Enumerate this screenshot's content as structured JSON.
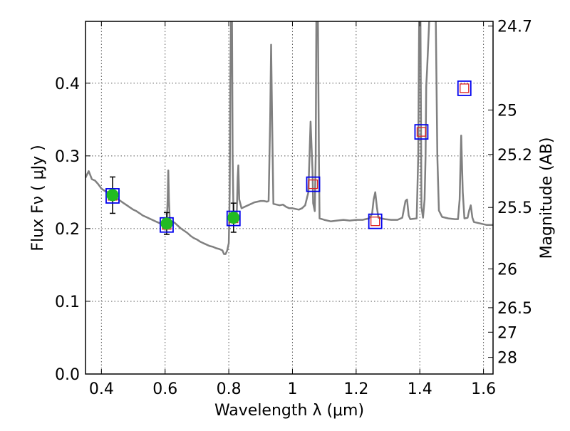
{
  "chart_data": {
    "type": "scatter",
    "xlabel": "Wavelength  λ (μm)",
    "ylabel": "Flux  Fν  ( μJy )",
    "y2label": "Magnitude (AB)",
    "xlim": [
      0.35,
      1.63
    ],
    "ylim": [
      0.0,
      0.485
    ],
    "grid": true,
    "x_ticks": [
      0.4,
      0.6,
      0.8,
      1.0,
      1.2,
      1.4,
      1.6
    ],
    "x_tick_labels": [
      "0.4",
      "0.6",
      "0.8",
      "1",
      "1.2",
      "1.4",
      "1.6"
    ],
    "y_ticks": [
      0.0,
      0.1,
      0.2,
      0.3,
      0.4
    ],
    "y_tick_labels": [
      "0.0",
      "0.1",
      "0.2",
      "0.3",
      "0.4"
    ],
    "y2_ticks": [
      {
        "label": "24.7",
        "flux": 0.4786
      },
      {
        "label": "25",
        "flux": 0.3631
      },
      {
        "label": "25.2",
        "flux": 0.302
      },
      {
        "label": "25.5",
        "flux": 0.2291
      },
      {
        "label": "26",
        "flux": 0.1445
      },
      {
        "label": "26.5",
        "flux": 0.0912
      },
      {
        "label": "27",
        "flux": 0.0575
      },
      {
        "label": "28",
        "flux": 0.0229
      }
    ],
    "colors": {
      "sed": "#808080",
      "observed": "#22bb22",
      "model_outer": "#0000ee",
      "model_inner": "#dd2222",
      "errorbar": "#000000"
    },
    "series": [
      {
        "kind": "line",
        "points": [
          [
            0.35,
            0.27
          ],
          [
            0.36,
            0.279
          ],
          [
            0.37,
            0.268
          ],
          [
            0.38,
            0.266
          ],
          [
            0.39,
            0.261
          ],
          [
            0.4,
            0.255
          ],
          [
            0.41,
            0.252
          ],
          [
            0.42,
            0.25
          ],
          [
            0.43,
            0.247
          ],
          [
            0.44,
            0.244
          ],
          [
            0.45,
            0.241
          ],
          [
            0.46,
            0.238
          ],
          [
            0.47,
            0.235
          ],
          [
            0.48,
            0.232
          ],
          [
            0.49,
            0.229
          ],
          [
            0.5,
            0.226
          ],
          [
            0.51,
            0.224
          ],
          [
            0.52,
            0.221
          ],
          [
            0.53,
            0.218
          ],
          [
            0.54,
            0.216
          ],
          [
            0.55,
            0.214
          ],
          [
            0.56,
            0.212
          ],
          [
            0.57,
            0.21
          ],
          [
            0.58,
            0.208
          ],
          [
            0.59,
            0.206
          ],
          [
            0.6,
            0.204
          ],
          [
            0.605,
            0.206
          ],
          [
            0.608,
            0.24
          ],
          [
            0.61,
            0.28
          ],
          [
            0.612,
            0.24
          ],
          [
            0.615,
            0.209
          ],
          [
            0.62,
            0.21
          ],
          [
            0.63,
            0.208
          ],
          [
            0.64,
            0.204
          ],
          [
            0.65,
            0.2
          ],
          [
            0.66,
            0.197
          ],
          [
            0.67,
            0.194
          ],
          [
            0.68,
            0.19
          ],
          [
            0.69,
            0.187
          ],
          [
            0.7,
            0.185
          ],
          [
            0.71,
            0.182
          ],
          [
            0.72,
            0.18
          ],
          [
            0.73,
            0.178
          ],
          [
            0.74,
            0.176
          ],
          [
            0.75,
            0.175
          ],
          [
            0.76,
            0.173
          ],
          [
            0.77,
            0.172
          ],
          [
            0.78,
            0.17
          ],
          [
            0.785,
            0.165
          ],
          [
            0.79,
            0.165
          ],
          [
            0.795,
            0.17
          ],
          [
            0.8,
            0.18
          ],
          [
            0.803,
            0.25
          ],
          [
            0.805,
            0.4
          ],
          [
            0.807,
            0.49
          ],
          [
            0.81,
            0.49
          ],
          [
            0.812,
            0.3
          ],
          [
            0.815,
            0.215
          ],
          [
            0.82,
            0.215
          ],
          [
            0.825,
            0.22
          ],
          [
            0.828,
            0.27
          ],
          [
            0.83,
            0.287
          ],
          [
            0.833,
            0.24
          ],
          [
            0.84,
            0.228
          ],
          [
            0.85,
            0.23
          ],
          [
            0.86,
            0.232
          ],
          [
            0.87,
            0.234
          ],
          [
            0.88,
            0.236
          ],
          [
            0.89,
            0.237
          ],
          [
            0.9,
            0.238
          ],
          [
            0.91,
            0.238
          ],
          [
            0.92,
            0.237
          ],
          [
            0.925,
            0.238
          ],
          [
            0.93,
            0.35
          ],
          [
            0.933,
            0.453
          ],
          [
            0.936,
            0.35
          ],
          [
            0.94,
            0.234
          ],
          [
            0.95,
            0.233
          ],
          [
            0.96,
            0.232
          ],
          [
            0.97,
            0.233
          ],
          [
            0.98,
            0.23
          ],
          [
            0.99,
            0.228
          ],
          [
            1.0,
            0.228
          ],
          [
            1.01,
            0.227
          ],
          [
            1.02,
            0.226
          ],
          [
            1.03,
            0.228
          ],
          [
            1.04,
            0.232
          ],
          [
            1.05,
            0.25
          ],
          [
            1.057,
            0.347
          ],
          [
            1.063,
            0.28
          ],
          [
            1.065,
            0.235
          ],
          [
            1.07,
            0.224
          ],
          [
            1.073,
            0.3
          ],
          [
            1.075,
            0.49
          ],
          [
            1.08,
            0.49
          ],
          [
            1.083,
            0.3
          ],
          [
            1.085,
            0.214
          ],
          [
            1.1,
            0.212
          ],
          [
            1.12,
            0.21
          ],
          [
            1.14,
            0.211
          ],
          [
            1.16,
            0.212
          ],
          [
            1.18,
            0.211
          ],
          [
            1.2,
            0.212
          ],
          [
            1.22,
            0.212
          ],
          [
            1.24,
            0.214
          ],
          [
            1.25,
            0.22
          ],
          [
            1.255,
            0.24
          ],
          [
            1.26,
            0.25
          ],
          [
            1.265,
            0.23
          ],
          [
            1.27,
            0.215
          ],
          [
            1.29,
            0.213
          ],
          [
            1.31,
            0.212
          ],
          [
            1.33,
            0.212
          ],
          [
            1.345,
            0.215
          ],
          [
            1.355,
            0.238
          ],
          [
            1.36,
            0.24
          ],
          [
            1.365,
            0.218
          ],
          [
            1.37,
            0.213
          ],
          [
            1.39,
            0.214
          ],
          [
            1.395,
            0.3
          ],
          [
            1.398,
            0.49
          ],
          [
            1.402,
            0.49
          ],
          [
            1.405,
            0.23
          ],
          [
            1.41,
            0.215
          ],
          [
            1.415,
            0.24
          ],
          [
            1.418,
            0.3
          ],
          [
            1.42,
            0.395
          ],
          [
            1.423,
            0.42
          ],
          [
            1.43,
            0.49
          ],
          [
            1.44,
            0.49
          ],
          [
            1.45,
            0.49
          ],
          [
            1.455,
            0.3
          ],
          [
            1.46,
            0.225
          ],
          [
            1.47,
            0.216
          ],
          [
            1.49,
            0.214
          ],
          [
            1.51,
            0.213
          ],
          [
            1.52,
            0.213
          ],
          [
            1.525,
            0.24
          ],
          [
            1.53,
            0.328
          ],
          [
            1.535,
            0.25
          ],
          [
            1.54,
            0.214
          ],
          [
            1.55,
            0.215
          ],
          [
            1.555,
            0.225
          ],
          [
            1.56,
            0.232
          ],
          [
            1.565,
            0.215
          ],
          [
            1.57,
            0.209
          ],
          [
            1.59,
            0.207
          ],
          [
            1.61,
            0.205
          ],
          [
            1.63,
            0.205
          ]
        ]
      },
      {
        "kind": "observed",
        "x": [
          0.435,
          0.605,
          0.815
        ],
        "y": [
          0.246,
          0.207,
          0.215
        ],
        "yerr": [
          0.025,
          0.015,
          0.02
        ]
      },
      {
        "kind": "model",
        "x": [
          0.435,
          0.605,
          0.815,
          1.065,
          1.26,
          1.405,
          1.54
        ],
        "y": [
          0.245,
          0.205,
          0.214,
          0.261,
          0.21,
          0.333,
          0.393
        ]
      }
    ]
  }
}
